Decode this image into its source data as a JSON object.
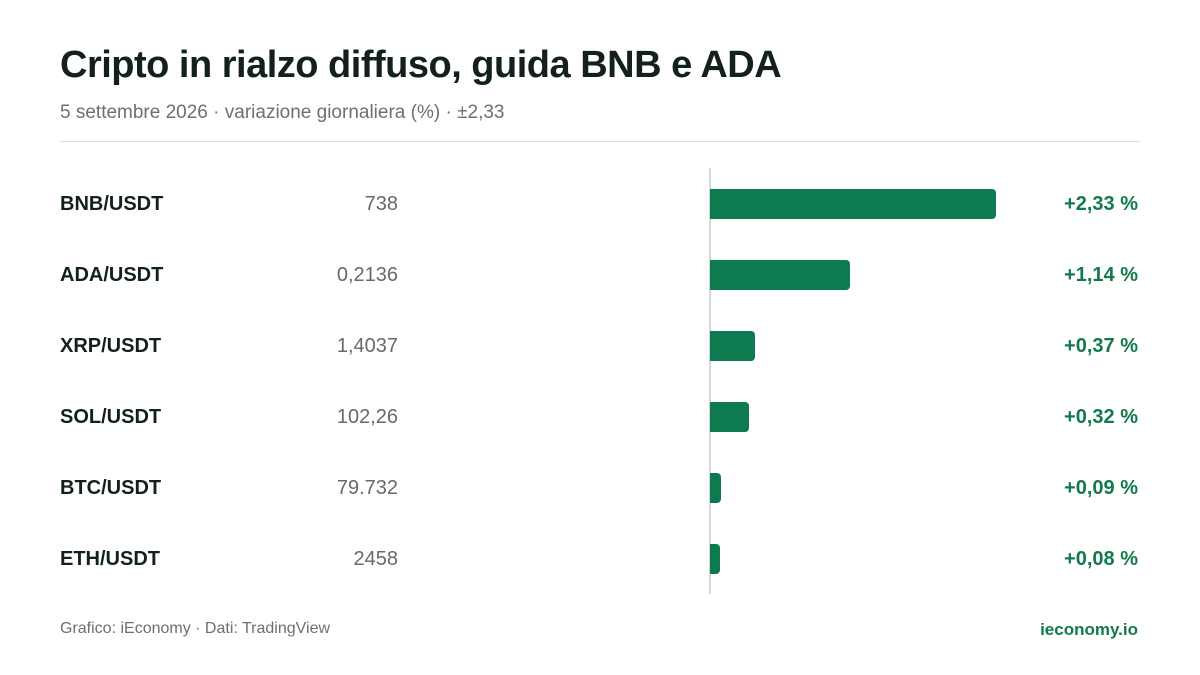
{
  "header": {
    "title": "Cripto in rialzo diffuso, guida BNB e ADA",
    "subtitle": "5 settembre 2026 · variazione giornaliera (%) · ±2,33"
  },
  "footer": {
    "credit": "Grafico: iEconomy · Dati: TradingView",
    "brand": "ieconomy.io"
  },
  "colors": {
    "positive": "#0e7a4f",
    "text": "#13211c",
    "muted": "#6a716e"
  },
  "chart_data": {
    "type": "bar",
    "orientation": "horizontal",
    "title": "Cripto in rialzo diffuso, guida BNB e ADA",
    "subtitle": "5 settembre 2026 · variazione giornaliera (%) · ±2,33",
    "xlim": [
      0,
      2.33
    ],
    "grid": false,
    "legend": "none",
    "rows": [
      {
        "pair": "BNB/USDT",
        "price": "738",
        "change": 2.33,
        "change_label": "+2,33 %"
      },
      {
        "pair": "ADA/USDT",
        "price": "0,2136",
        "change": 1.14,
        "change_label": "+1,14 %"
      },
      {
        "pair": "XRP/USDT",
        "price": "1,4037",
        "change": 0.37,
        "change_label": "+0,37 %"
      },
      {
        "pair": "SOL/USDT",
        "price": "102,26",
        "change": 0.32,
        "change_label": "+0,32 %"
      },
      {
        "pair": "BTC/USDT",
        "price": "79.732",
        "change": 0.09,
        "change_label": "+0,09 %"
      },
      {
        "pair": "ETH/USDT",
        "price": "2458",
        "change": 0.08,
        "change_label": "+0,08 %"
      }
    ]
  }
}
